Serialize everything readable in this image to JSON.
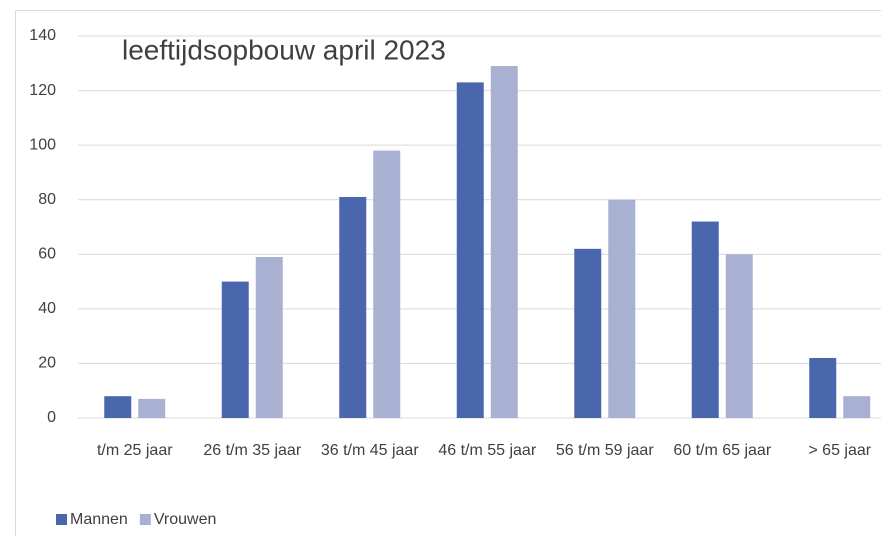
{
  "chart_data": {
    "type": "bar",
    "title": "leeftijdsopbouw april 2023",
    "categories": [
      "t/m 25 jaar",
      "26 t/m 35 jaar",
      "36 t/m 45 jaar",
      "46 t/m 55 jaar",
      "56 t/m 59 jaar",
      "60 t/m 65 jaar",
      "> 65 jaar"
    ],
    "series": [
      {
        "name": "Mannen",
        "color": "#4a66ad",
        "values": [
          8,
          50,
          81,
          123,
          62,
          72,
          22
        ]
      },
      {
        "name": "Vrouwen",
        "color": "#a8b1d1",
        "values": [
          7,
          59,
          98,
          129,
          80,
          60,
          8
        ]
      }
    ],
    "ylim": [
      0,
      140
    ],
    "yticks": [
      0,
      20,
      40,
      60,
      80,
      100,
      120,
      140
    ],
    "grid": true,
    "legend": "bottom-left"
  }
}
